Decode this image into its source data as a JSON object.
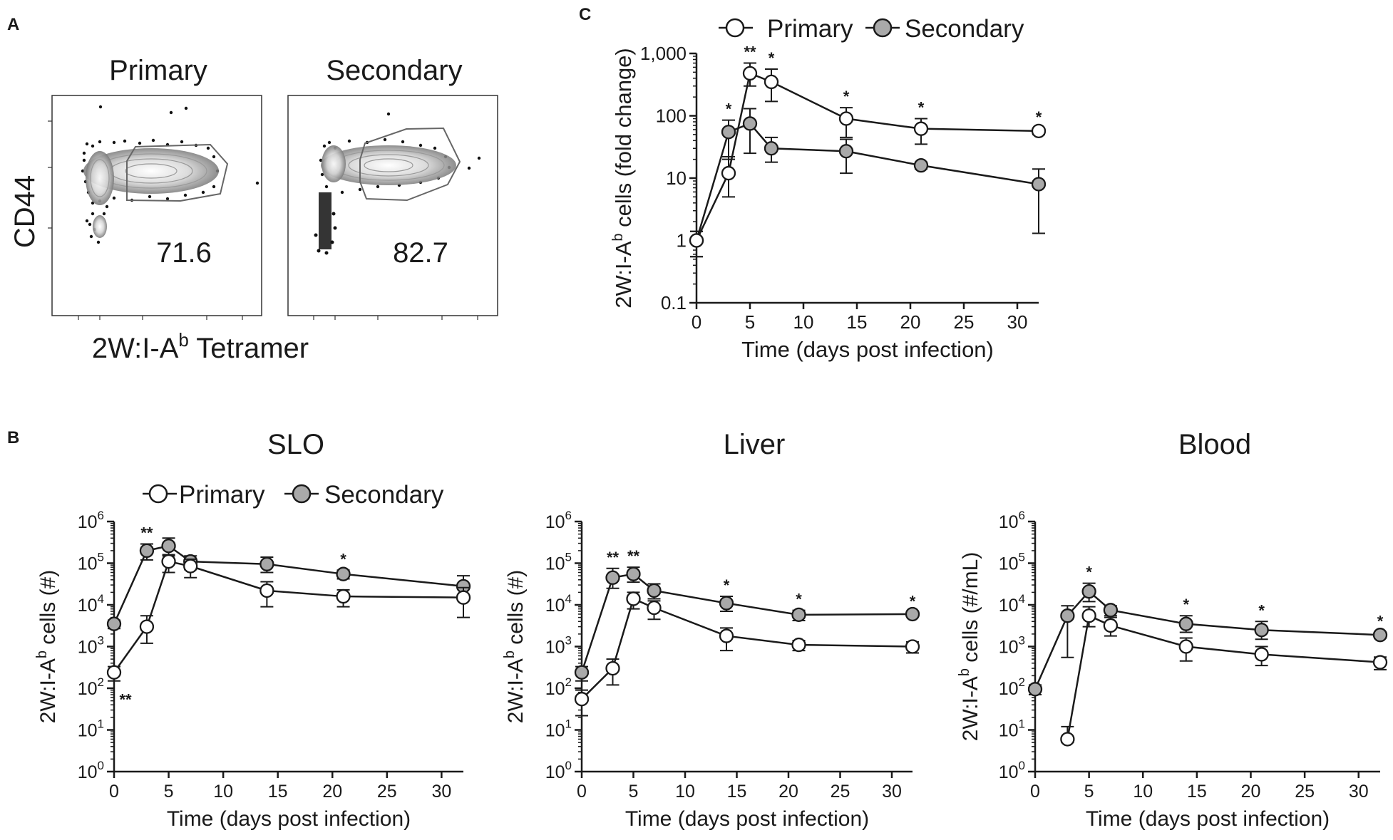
{
  "colors": {
    "primary": "#ffffff",
    "secondary": "#a9a9a9",
    "line": "#1a1a1a"
  },
  "panel_a": {
    "label": "A",
    "primary_title": "Primary",
    "secondary_title": "Secondary",
    "y_label": "CD44",
    "x_label_main": "2W:I-A",
    "x_label_sup": "b",
    "x_label_tail": " Tetramer",
    "primary_value": "71.6",
    "secondary_value": "82.7"
  },
  "legend": {
    "primary": "Primary",
    "secondary": "Secondary"
  },
  "chart_data": [
    {
      "id": "C",
      "panel": "C",
      "type": "line",
      "title": "",
      "xlabel": "Time (days post infection)",
      "ylabel": {
        "main": "2W:I-A",
        "sup": "b",
        "tail": " cells (fold change)"
      },
      "yscale": "log",
      "xlim": [
        0,
        32
      ],
      "ylim": [
        0.1,
        1000
      ],
      "xticks": [
        0,
        5,
        10,
        15,
        20,
        25,
        30
      ],
      "yticks": [
        {
          "v": 0.1,
          "label": "0.1"
        },
        {
          "v": 1,
          "label": "1"
        },
        {
          "v": 10,
          "label": "10"
        },
        {
          "v": 100,
          "label": "100"
        },
        {
          "v": 1000,
          "label": "1,000"
        }
      ],
      "series": [
        {
          "name": "Primary",
          "fill": "white",
          "points": [
            {
              "x": 0,
              "y": 1,
              "lo": 0.55,
              "hi": 1.4
            },
            {
              "x": 3,
              "y": 12,
              "lo": 5,
              "hi": 22
            },
            {
              "x": 5,
              "y": 480,
              "lo": 300,
              "hi": 700
            },
            {
              "x": 7,
              "y": 350,
              "lo": 170,
              "hi": 560
            },
            {
              "x": 14,
              "y": 90,
              "lo": 45,
              "hi": 135
            },
            {
              "x": 21,
              "y": 62,
              "lo": 35,
              "hi": 90
            },
            {
              "x": 32,
              "y": 57,
              "lo": 50,
              "hi": 63
            }
          ]
        },
        {
          "name": "Secondary",
          "fill": "gray",
          "points": [
            {
              "x": 0,
              "y": 1,
              "lo": 0.55,
              "hi": 1.4
            },
            {
              "x": 3,
              "y": 55,
              "lo": 20,
              "hi": 85
            },
            {
              "x": 5,
              "y": 75,
              "lo": 25,
              "hi": 130
            },
            {
              "x": 7,
              "y": 30,
              "lo": 18,
              "hi": 45
            },
            {
              "x": 14,
              "y": 27,
              "lo": 12,
              "hi": 42
            },
            {
              "x": 21,
              "y": 16,
              "lo": 14,
              "hi": 18
            },
            {
              "x": 32,
              "y": 8,
              "lo": 1.3,
              "hi": 14
            }
          ]
        }
      ],
      "annotations": [
        {
          "x": 3,
          "text": "*"
        },
        {
          "x": 5,
          "text": "**"
        },
        {
          "x": 7,
          "text": "*"
        },
        {
          "x": 14,
          "text": "*"
        },
        {
          "x": 21,
          "text": "*"
        },
        {
          "x": 32,
          "text": "*"
        }
      ]
    },
    {
      "id": "SLO",
      "panel": "B",
      "type": "line",
      "title": "SLO",
      "xlabel": "Time (days post infection)",
      "ylabel": {
        "main": "2W:I-A",
        "sup": "b",
        "tail": " cells (#)"
      },
      "yscale": "log",
      "xlim": [
        0,
        32
      ],
      "ylim": [
        1,
        1000000
      ],
      "xticks": [
        0,
        5,
        10,
        15,
        20,
        25,
        30
      ],
      "yticks": [
        {
          "v": 1,
          "label": "10",
          "exp": "0"
        },
        {
          "v": 10,
          "label": "10",
          "exp": "1"
        },
        {
          "v": 100,
          "label": "10",
          "exp": "2"
        },
        {
          "v": 1000,
          "label": "10",
          "exp": "3"
        },
        {
          "v": 10000,
          "label": "10",
          "exp": "4"
        },
        {
          "v": 100000,
          "label": "10",
          "exp": "5"
        },
        {
          "v": 1000000,
          "label": "10",
          "exp": "6"
        }
      ],
      "series": [
        {
          "name": "Primary",
          "fill": "white",
          "points": [
            {
              "x": 0,
              "y": 240,
              "lo": 150,
              "hi": 330
            },
            {
              "x": 3,
              "y": 3000,
              "lo": 1200,
              "hi": 5500
            },
            {
              "x": 5,
              "y": 110000,
              "lo": 60000,
              "hi": 160000
            },
            {
              "x": 7,
              "y": 85000,
              "lo": 45000,
              "hi": 125000
            },
            {
              "x": 14,
              "y": 22000,
              "lo": 9000,
              "hi": 36000
            },
            {
              "x": 21,
              "y": 16000,
              "lo": 9000,
              "hi": 23000
            },
            {
              "x": 32,
              "y": 15000,
              "lo": 5000,
              "hi": 26000
            }
          ]
        },
        {
          "name": "Secondary",
          "fill": "gray",
          "points": [
            {
              "x": 0,
              "y": 3500,
              "lo": 2700,
              "hi": 4300
            },
            {
              "x": 3,
              "y": 200000,
              "lo": 120000,
              "hi": 290000
            },
            {
              "x": 5,
              "y": 260000,
              "lo": 150000,
              "hi": 400000
            },
            {
              "x": 7,
              "y": 110000,
              "lo": 70000,
              "hi": 150000
            },
            {
              "x": 14,
              "y": 95000,
              "lo": 60000,
              "hi": 140000
            },
            {
              "x": 21,
              "y": 55000,
              "lo": 42000,
              "hi": 68000
            },
            {
              "x": 32,
              "y": 28000,
              "lo": 16000,
              "hi": 50000
            }
          ]
        }
      ],
      "annotations": [
        {
          "x": 0,
          "text": "**",
          "position": "below"
        },
        {
          "x": 3,
          "text": "**"
        },
        {
          "x": 21,
          "text": "*"
        }
      ]
    },
    {
      "id": "Liver",
      "panel": "B",
      "type": "line",
      "title": "Liver",
      "xlabel": "Time (days post infection)",
      "ylabel": {
        "main": "2W:I-A",
        "sup": "b",
        "tail": " cells (#)"
      },
      "yscale": "log",
      "xlim": [
        0,
        32
      ],
      "ylim": [
        1,
        1000000
      ],
      "xticks": [
        0,
        5,
        10,
        15,
        20,
        25,
        30
      ],
      "yticks": [
        {
          "v": 1,
          "label": "10",
          "exp": "0"
        },
        {
          "v": 10,
          "label": "10",
          "exp": "1"
        },
        {
          "v": 100,
          "label": "10",
          "exp": "2"
        },
        {
          "v": 1000,
          "label": "10",
          "exp": "3"
        },
        {
          "v": 10000,
          "label": "10",
          "exp": "4"
        },
        {
          "v": 100000,
          "label": "10",
          "exp": "5"
        },
        {
          "v": 1000000,
          "label": "10",
          "exp": "6"
        }
      ],
      "series": [
        {
          "name": "Primary",
          "fill": "white",
          "points": [
            {
              "x": 0,
              "y": 55,
              "lo": 22,
              "hi": 90
            },
            {
              "x": 3,
              "y": 300,
              "lo": 120,
              "hi": 500
            },
            {
              "x": 5,
              "y": 14000,
              "lo": 8000,
              "hi": 20000
            },
            {
              "x": 7,
              "y": 8500,
              "lo": 4500,
              "hi": 12500
            },
            {
              "x": 14,
              "y": 1800,
              "lo": 800,
              "hi": 2800
            },
            {
              "x": 21,
              "y": 1100,
              "lo": 800,
              "hi": 1400
            },
            {
              "x": 32,
              "y": 1000,
              "lo": 700,
              "hi": 1300
            }
          ]
        },
        {
          "name": "Secondary",
          "fill": "gray",
          "points": [
            {
              "x": 0,
              "y": 240,
              "lo": 150,
              "hi": 330
            },
            {
              "x": 3,
              "y": 45000,
              "lo": 25000,
              "hi": 75000
            },
            {
              "x": 5,
              "y": 55000,
              "lo": 35000,
              "hi": 80000
            },
            {
              "x": 7,
              "y": 22000,
              "lo": 14000,
              "hi": 32000
            },
            {
              "x": 14,
              "y": 11000,
              "lo": 7000,
              "hi": 16000
            },
            {
              "x": 21,
              "y": 5800,
              "lo": 4200,
              "hi": 7400
            },
            {
              "x": 32,
              "y": 6000,
              "lo": 5400,
              "hi": 6600
            }
          ]
        }
      ],
      "annotations": [
        {
          "x": 3,
          "text": "**"
        },
        {
          "x": 5,
          "text": "**"
        },
        {
          "x": 14,
          "text": "*"
        },
        {
          "x": 21,
          "text": "*"
        },
        {
          "x": 32,
          "text": "*"
        }
      ]
    },
    {
      "id": "Blood",
      "panel": "B",
      "type": "line",
      "title": "Blood",
      "xlabel": "Time (days post infection)",
      "ylabel": {
        "main": "2W:I-A",
        "sup": "b",
        "tail": " cells (#/mL)"
      },
      "yscale": "log",
      "xlim": [
        0,
        32
      ],
      "ylim": [
        1,
        1000000
      ],
      "xticks": [
        0,
        5,
        10,
        15,
        20,
        25,
        30
      ],
      "yticks": [
        {
          "v": 1,
          "label": "10",
          "exp": "0"
        },
        {
          "v": 10,
          "label": "10",
          "exp": "1"
        },
        {
          "v": 100,
          "label": "10",
          "exp": "2"
        },
        {
          "v": 1000,
          "label": "10",
          "exp": "3"
        },
        {
          "v": 10000,
          "label": "10",
          "exp": "4"
        },
        {
          "v": 100000,
          "label": "10",
          "exp": "5"
        },
        {
          "v": 1000000,
          "label": "10",
          "exp": "6"
        }
      ],
      "series": [
        {
          "name": "Primary",
          "fill": "white",
          "points": [
            {
              "x": 3,
              "y": 6,
              "lo": 5,
              "hi": 12
            },
            {
              "x": 5,
              "y": 5500,
              "lo": 3000,
              "hi": 9000
            },
            {
              "x": 7,
              "y": 3200,
              "lo": 1800,
              "hi": 5000
            },
            {
              "x": 14,
              "y": 1000,
              "lo": 450,
              "hi": 1600
            },
            {
              "x": 21,
              "y": 650,
              "lo": 350,
              "hi": 1000
            },
            {
              "x": 32,
              "y": 420,
              "lo": 280,
              "hi": 560
            }
          ]
        },
        {
          "name": "Secondary",
          "fill": "gray",
          "points": [
            {
              "x": 0,
              "y": 95,
              "lo": 70,
              "hi": 120
            },
            {
              "x": 3,
              "y": 5500,
              "lo": 550,
              "hi": 9500
            },
            {
              "x": 5,
              "y": 21000,
              "lo": 12000,
              "hi": 33000
            },
            {
              "x": 7,
              "y": 7500,
              "lo": 5500,
              "hi": 9500
            },
            {
              "x": 14,
              "y": 3500,
              "lo": 2200,
              "hi": 5500
            },
            {
              "x": 21,
              "y": 2500,
              "lo": 1500,
              "hi": 4000
            },
            {
              "x": 32,
              "y": 1900,
              "lo": 1600,
              "hi": 2200
            }
          ]
        }
      ],
      "annotations": [
        {
          "x": 5,
          "text": "*"
        },
        {
          "x": 14,
          "text": "*"
        },
        {
          "x": 21,
          "text": "*"
        },
        {
          "x": 32,
          "text": "*"
        }
      ]
    }
  ]
}
